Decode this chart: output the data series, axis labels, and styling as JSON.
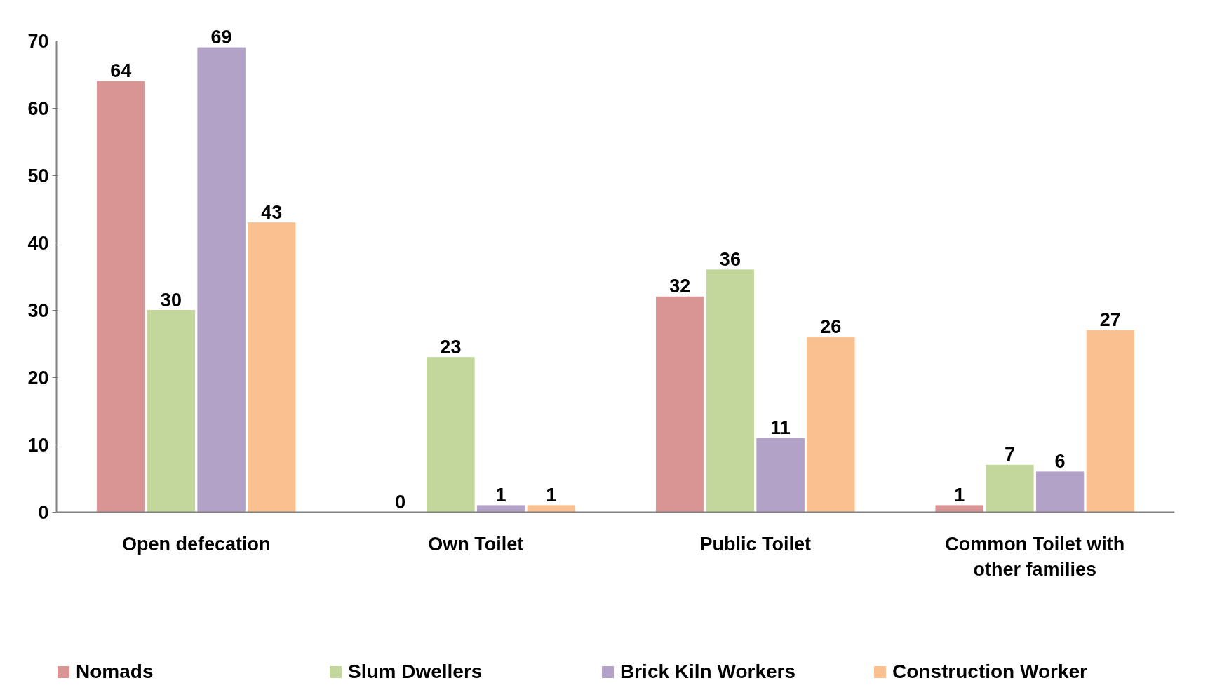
{
  "chart_data": {
    "type": "bar",
    "categories": [
      "Open defecation",
      "Own Toilet",
      "Public Toilet",
      "Common Toilet with other families"
    ],
    "series": [
      {
        "name": "Nomads",
        "color": "#d99594",
        "values": [
          64,
          0,
          32,
          1
        ]
      },
      {
        "name": "Slum Dwellers",
        "color": "#c3d69b",
        "values": [
          30,
          23,
          36,
          7
        ]
      },
      {
        "name": "Brick Kiln Workers",
        "color": "#b3a2c7",
        "values": [
          69,
          1,
          11,
          6
        ]
      },
      {
        "name": "Construction Worker",
        "color": "#fac08f",
        "values": [
          43,
          1,
          26,
          27
        ]
      }
    ],
    "ylim": [
      0,
      70
    ],
    "yticks": [
      0,
      10,
      20,
      30,
      40,
      50,
      60,
      70
    ],
    "data_labels": true,
    "grid": false,
    "legend": "bottom"
  }
}
